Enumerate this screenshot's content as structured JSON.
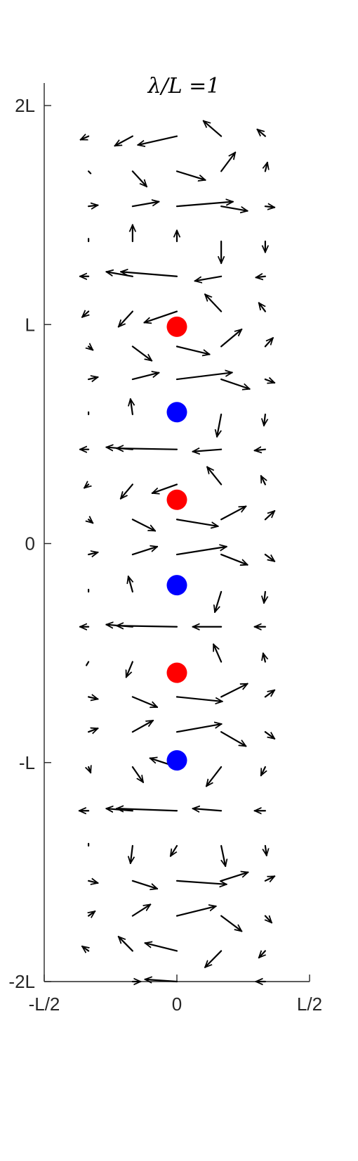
{
  "chart_data": {
    "type": "quiver",
    "title": "λ/L =1",
    "xlabel": "",
    "ylabel": "",
    "xlim": [
      -0.5,
      0.5
    ],
    "ylim": [
      -2,
      2
    ],
    "grid": false,
    "x_ticks": [
      {
        "value": -0.5,
        "label": "-L/2"
      },
      {
        "value": 0,
        "label": "0"
      },
      {
        "value": 0.5,
        "label": "L/2"
      }
    ],
    "y_ticks": [
      {
        "value": -2,
        "label": "-2L"
      },
      {
        "value": -1,
        "label": "-L"
      },
      {
        "value": 0,
        "label": "0"
      },
      {
        "value": 1,
        "label": "L"
      },
      {
        "value": 2,
        "label": "2L"
      }
    ],
    "colors": {
      "arrow": "#000000",
      "positive_charge": "#ff0000",
      "negative_charge": "#0000ff",
      "axis": "#262626"
    },
    "charges": [
      {
        "x": 0,
        "y": 0.99,
        "sign": "+"
      },
      {
        "x": 0,
        "y": 0.6,
        "sign": "-"
      },
      {
        "x": 0,
        "y": 0.2,
        "sign": "+"
      },
      {
        "x": 0,
        "y": -0.19,
        "sign": "-"
      },
      {
        "x": 0,
        "y": -0.59,
        "sign": "+"
      },
      {
        "x": 0,
        "y": -0.99,
        "sign": "-"
      }
    ],
    "vectors": [
      {
        "x": -0.333,
        "y": 1.86,
        "u": -0.03,
        "v": -0.016
      },
      {
        "x": -0.167,
        "y": 1.86,
        "u": -0.067,
        "v": -0.044
      },
      {
        "x": 0,
        "y": 1.86,
        "u": -0.147,
        "v": -0.04
      },
      {
        "x": 0.167,
        "y": 1.86,
        "u": -0.067,
        "v": 0.07
      },
      {
        "x": 0.333,
        "y": 1.86,
        "u": -0.03,
        "v": 0.031
      },
      {
        "x": -0.333,
        "y": 1.7,
        "u": 0.008,
        "v": -0.01
      },
      {
        "x": -0.167,
        "y": 1.7,
        "u": 0.053,
        "v": -0.07
      },
      {
        "x": 0,
        "y": 1.7,
        "u": 0.107,
        "v": -0.04
      },
      {
        "x": 0.167,
        "y": 1.7,
        "u": 0.053,
        "v": 0.086
      },
      {
        "x": 0.333,
        "y": 1.7,
        "u": 0.008,
        "v": 0.04
      },
      {
        "x": -0.333,
        "y": 1.54,
        "u": 0.035,
        "v": 0.005
      },
      {
        "x": -0.167,
        "y": 1.54,
        "u": 0.099,
        "v": 0.021
      },
      {
        "x": 0,
        "y": 1.54,
        "u": 0.211,
        "v": 0.021
      },
      {
        "x": 0.167,
        "y": 1.54,
        "u": 0.099,
        "v": -0.021
      },
      {
        "x": 0.333,
        "y": 1.54,
        "u": 0.035,
        "v": -0.005
      },
      {
        "x": -0.333,
        "y": 1.38,
        "u": 0,
        "v": 0.012
      },
      {
        "x": -0.167,
        "y": 1.38,
        "u": 0,
        "v": 0.075
      },
      {
        "x": 0,
        "y": 1.38,
        "u": 0,
        "v": 0.05
      },
      {
        "x": 0.167,
        "y": 1.38,
        "u": 0,
        "v": -0.1
      },
      {
        "x": 0.333,
        "y": 1.38,
        "u": 0,
        "v": -0.05
      },
      {
        "x": -0.333,
        "y": 1.22,
        "u": -0.032,
        "v": 0
      },
      {
        "x": -0.167,
        "y": 1.22,
        "u": -0.099,
        "v": 0.021
      },
      {
        "x": 0,
        "y": 1.22,
        "u": -0.211,
        "v": 0.021
      },
      {
        "x": 0.167,
        "y": 1.22,
        "u": -0.099,
        "v": -0.021
      },
      {
        "x": 0.333,
        "y": 1.22,
        "u": -0.035,
        "v": -0.005
      },
      {
        "x": -0.333,
        "y": 1.06,
        "u": -0.024,
        "v": -0.026
      },
      {
        "x": -0.167,
        "y": 1.06,
        "u": -0.053,
        "v": -0.07
      },
      {
        "x": 0,
        "y": 1.06,
        "u": -0.123,
        "v": -0.051
      },
      {
        "x": 0.167,
        "y": 1.06,
        "u": -0.061,
        "v": 0.078
      },
      {
        "x": 0.333,
        "y": 1.06,
        "u": -0.024,
        "v": 0.039
      },
      {
        "x": -0.333,
        "y": 0.9,
        "u": 0.016,
        "v": -0.016
      },
      {
        "x": -0.167,
        "y": 0.9,
        "u": 0.072,
        "v": -0.065
      },
      {
        "x": 0,
        "y": 0.9,
        "u": 0.123,
        "v": -0.036
      },
      {
        "x": 0.167,
        "y": 0.9,
        "u": 0.077,
        "v": 0.078
      },
      {
        "x": 0.333,
        "y": 0.9,
        "u": 0.029,
        "v": 0.039
      },
      {
        "x": -0.333,
        "y": 0.75,
        "u": 0.035,
        "v": 0.01
      },
      {
        "x": -0.167,
        "y": 0.75,
        "u": 0.099,
        "v": 0.03
      },
      {
        "x": 0,
        "y": 0.75,
        "u": 0.208,
        "v": 0.031
      },
      {
        "x": 0.167,
        "y": 0.75,
        "u": 0.107,
        "v": -0.044
      },
      {
        "x": 0.333,
        "y": 0.75,
        "u": 0.035,
        "v": -0.016
      },
      {
        "x": -0.333,
        "y": 0.59,
        "u": 0,
        "v": 0.01
      },
      {
        "x": -0.167,
        "y": 0.59,
        "u": -0.008,
        "v": 0.07
      },
      {
        "x": 0.167,
        "y": 0.59,
        "u": -0.016,
        "v": -0.102
      },
      {
        "x": 0.333,
        "y": 0.59,
        "u": -0.005,
        "v": -0.051
      },
      {
        "x": -0.333,
        "y": 0.43,
        "u": -0.032,
        "v": 0
      },
      {
        "x": -0.167,
        "y": 0.43,
        "u": -0.099,
        "v": 0.01
      },
      {
        "x": 0,
        "y": 0.43,
        "u": -0.227,
        "v": 0.005
      },
      {
        "x": 0.167,
        "y": 0.43,
        "u": -0.107,
        "v": -0.01
      },
      {
        "x": 0.333,
        "y": 0.43,
        "u": -0.04,
        "v": -0.005
      },
      {
        "x": -0.333,
        "y": 0.27,
        "u": -0.016,
        "v": -0.016
      },
      {
        "x": -0.167,
        "y": 0.27,
        "u": -0.045,
        "v": -0.065
      },
      {
        "x": 0,
        "y": 0.27,
        "u": -0.093,
        "v": -0.04
      },
      {
        "x": 0.167,
        "y": 0.27,
        "u": -0.053,
        "v": 0.08
      },
      {
        "x": 0.333,
        "y": 0.27,
        "u": -0.016,
        "v": 0.039
      },
      {
        "x": -0.333,
        "y": 0.11,
        "u": 0.016,
        "v": -0.016
      },
      {
        "x": -0.167,
        "y": 0.11,
        "u": 0.085,
        "v": -0.052
      },
      {
        "x": 0,
        "y": 0.11,
        "u": 0.155,
        "v": -0.031
      },
      {
        "x": 0.167,
        "y": 0.11,
        "u": 0.093,
        "v": 0.06
      },
      {
        "x": 0.333,
        "y": 0.11,
        "u": 0.035,
        "v": 0.039
      },
      {
        "x": -0.333,
        "y": -0.05,
        "u": 0.035,
        "v": 0.01
      },
      {
        "x": -0.167,
        "y": -0.05,
        "u": 0.093,
        "v": 0.036
      },
      {
        "x": 0,
        "y": -0.05,
        "u": 0.187,
        "v": 0.036
      },
      {
        "x": 0.167,
        "y": -0.05,
        "u": 0.099,
        "v": -0.047
      },
      {
        "x": 0.333,
        "y": -0.05,
        "u": 0.035,
        "v": -0.031
      },
      {
        "x": -0.333,
        "y": -0.22,
        "u": 0,
        "v": 0.01
      },
      {
        "x": -0.167,
        "y": -0.22,
        "u": -0.016,
        "v": 0.07
      },
      {
        "x": 0.167,
        "y": -0.22,
        "u": -0.024,
        "v": -0.093
      },
      {
        "x": 0.333,
        "y": -0.22,
        "u": -0.005,
        "v": -0.051
      },
      {
        "x": -0.333,
        "y": -0.38,
        "u": -0.032,
        "v": 0
      },
      {
        "x": -0.167,
        "y": -0.38,
        "u": -0.099,
        "v": 0.01
      },
      {
        "x": 0,
        "y": -0.38,
        "u": -0.227,
        "v": 0.005
      },
      {
        "x": 0.167,
        "y": -0.38,
        "u": -0.107,
        "v": 0
      },
      {
        "x": 0.333,
        "y": -0.38,
        "u": -0.04,
        "v": 0
      },
      {
        "x": -0.333,
        "y": -0.54,
        "u": -0.008,
        "v": -0.016
      },
      {
        "x": -0.167,
        "y": -0.54,
        "u": -0.024,
        "v": -0.07
      },
      {
        "x": 0.167,
        "y": -0.54,
        "u": -0.029,
        "v": 0.08
      },
      {
        "x": 0.333,
        "y": -0.54,
        "u": -0.008,
        "v": 0.039
      },
      {
        "x": -0.333,
        "y": -0.7,
        "u": 0.035,
        "v": -0.01
      },
      {
        "x": -0.167,
        "y": -0.7,
        "u": 0.093,
        "v": -0.047
      },
      {
        "x": 0,
        "y": -0.7,
        "u": 0.171,
        "v": -0.021
      },
      {
        "x": 0.167,
        "y": -0.7,
        "u": 0.099,
        "v": 0.06
      },
      {
        "x": 0.333,
        "y": -0.7,
        "u": 0.035,
        "v": 0.031
      },
      {
        "x": -0.333,
        "y": -0.86,
        "u": 0.035,
        "v": 0.016
      },
      {
        "x": -0.167,
        "y": -0.86,
        "u": 0.077,
        "v": 0.052
      },
      {
        "x": 0,
        "y": -0.86,
        "u": 0.168,
        "v": 0.036
      },
      {
        "x": 0.167,
        "y": -0.86,
        "u": 0.093,
        "v": -0.065
      },
      {
        "x": 0.333,
        "y": -0.86,
        "u": 0.035,
        "v": -0.031
      },
      {
        "x": -0.333,
        "y": -1.02,
        "u": 0.008,
        "v": -0.026
      },
      {
        "x": -0.167,
        "y": -1.02,
        "u": 0.04,
        "v": -0.07
      },
      {
        "x": 0,
        "y": -1.02,
        "u": -0.101,
        "v": 0.04
      },
      {
        "x": 0.167,
        "y": -1.02,
        "u": -0.056,
        "v": -0.088
      },
      {
        "x": 0.333,
        "y": -1.02,
        "u": -0.016,
        "v": -0.039
      },
      {
        "x": -0.333,
        "y": -1.22,
        "u": -0.035,
        "v": 0
      },
      {
        "x": -0.167,
        "y": -1.22,
        "u": -0.099,
        "v": 0.01
      },
      {
        "x": 0,
        "y": -1.22,
        "u": -0.227,
        "v": 0.01
      },
      {
        "x": 0.167,
        "y": -1.22,
        "u": -0.107,
        "v": 0.01
      },
      {
        "x": 0.333,
        "y": -1.22,
        "u": -0.04,
        "v": 0
      },
      {
        "x": -0.333,
        "y": -1.38,
        "u": 0,
        "v": 0.01
      },
      {
        "x": -0.167,
        "y": -1.38,
        "u": -0.008,
        "v": -0.08
      },
      {
        "x": 0,
        "y": -1.38,
        "u": -0.024,
        "v": -0.047
      },
      {
        "x": 0.167,
        "y": -1.38,
        "u": 0.016,
        "v": -0.093
      },
      {
        "x": 0.333,
        "y": -1.38,
        "u": 0.005,
        "v": -0.044
      },
      {
        "x": -0.333,
        "y": -1.54,
        "u": 0.035,
        "v": -0.01
      },
      {
        "x": -0.167,
        "y": -1.54,
        "u": 0.093,
        "v": -0.036
      },
      {
        "x": 0,
        "y": -1.54,
        "u": 0.187,
        "v": -0.016
      },
      {
        "x": 0.167,
        "y": -1.54,
        "u": 0.101,
        "v": 0.039
      },
      {
        "x": 0.333,
        "y": -1.54,
        "u": 0.035,
        "v": 0.021
      },
      {
        "x": -0.333,
        "y": -1.7,
        "u": 0.024,
        "v": 0.021
      },
      {
        "x": -0.167,
        "y": -1.7,
        "u": 0.067,
        "v": 0.052
      },
      {
        "x": 0,
        "y": -1.7,
        "u": 0.147,
        "v": 0.044
      },
      {
        "x": 0.167,
        "y": -1.7,
        "u": 0.077,
        "v": -0.07
      },
      {
        "x": 0.333,
        "y": -1.7,
        "u": 0.024,
        "v": -0.031
      },
      {
        "x": -0.333,
        "y": -1.86,
        "u": -0.024,
        "v": 0.021
      },
      {
        "x": -0.167,
        "y": -1.86,
        "u": -0.053,
        "v": 0.065
      },
      {
        "x": 0,
        "y": -1.86,
        "u": -0.12,
        "v": 0.036
      },
      {
        "x": 0.167,
        "y": -1.86,
        "u": -0.061,
        "v": -0.075
      },
      {
        "x": 0.333,
        "y": -1.86,
        "u": -0.024,
        "v": -0.031
      },
      {
        "x": 0,
        "y": -2.0,
        "u": -0.12,
        "v": 0.01
      },
      {
        "x": 0.333,
        "y": -2.0,
        "u": -0.035,
        "v": 0
      },
      {
        "x": -0.167,
        "y": -2.0,
        "u": 0.03,
        "v": 0
      }
    ]
  }
}
